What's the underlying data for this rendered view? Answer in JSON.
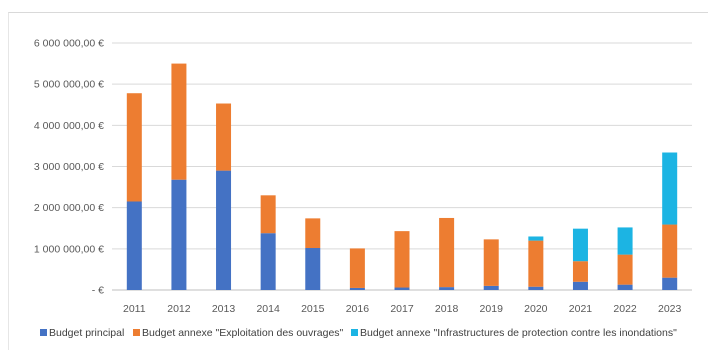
{
  "chart_data": {
    "type": "bar",
    "stacked": true,
    "categories": [
      "2011",
      "2012",
      "2013",
      "2014",
      "2015",
      "2016",
      "2017",
      "2018",
      "2019",
      "2020",
      "2021",
      "2022",
      "2023"
    ],
    "series": [
      {
        "name": "Budget principal",
        "color": "#4472C4",
        "values": [
          2150000,
          2680000,
          2900000,
          1380000,
          1020000,
          50000,
          60000,
          70000,
          100000,
          80000,
          200000,
          130000,
          300000
        ]
      },
      {
        "name": "Budget annexe \"Exploitation des ouvrages\"",
        "color": "#ED7D31",
        "values": [
          2630000,
          2820000,
          1630000,
          920000,
          720000,
          960000,
          1370000,
          1680000,
          1130000,
          1120000,
          500000,
          730000,
          1290000
        ]
      },
      {
        "name": "Budget annexe \"Infrastructures de protection contre les inondations\"",
        "color": "#1CB4E3",
        "values": [
          0,
          0,
          0,
          0,
          0,
          0,
          0,
          0,
          0,
          100000,
          790000,
          660000,
          1750000
        ]
      }
    ],
    "yticks": [
      "-   €",
      "1 000 000,00 €",
      "2 000 000,00 €",
      "3 000 000,00 €",
      "4 000 000,00 €",
      "5 000 000,00 €",
      "6 000 000,00 €"
    ],
    "ylim": [
      0,
      6000000
    ],
    "grid": true,
    "legend": "bottom"
  }
}
